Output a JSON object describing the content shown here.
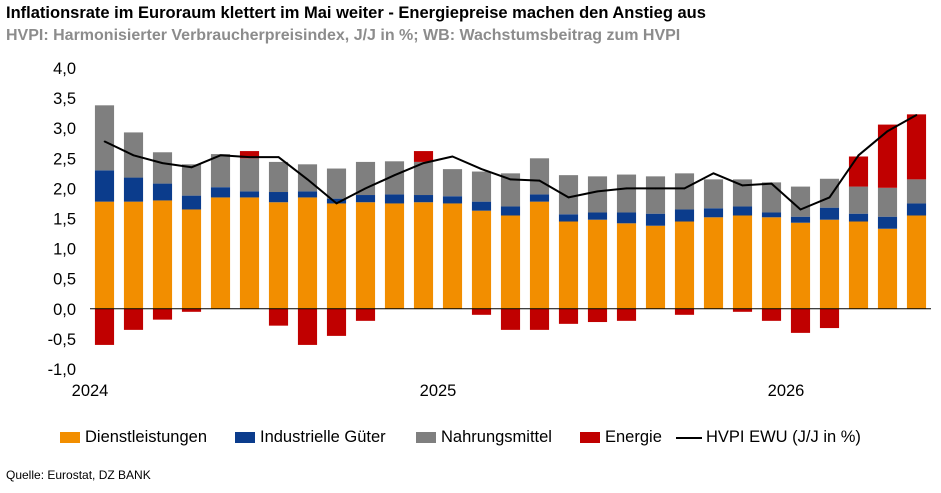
{
  "title": "Inflationsrate im Euroraum klettert im Mai weiter -  Energiepreise machen den Anstieg aus",
  "subtitle": "HVPI: Harmonisierter Verbraucherpreisindex, J/J in %; WB: Wachstumsbeitrag zum HVPI",
  "source": "Quelle: Eurostat, DZ BANK",
  "colors": {
    "dienstleistungen": "#f28e00",
    "industrielle_gueter": "#0b3c8c",
    "nahrungsmittel": "#7f7f7f",
    "energie": "#c00000",
    "hvpi": "#000000"
  },
  "chart_data": {
    "type": "bar",
    "stacked": true,
    "ylim": [
      -1.0,
      4.0
    ],
    "yticks": [
      "4,0",
      "3,5",
      "3,0",
      "2,5",
      "2,0",
      "1,5",
      "1,0",
      "0,5",
      "0,0",
      "-0,5",
      "-1,0"
    ],
    "x_year_labels": [
      {
        "label": "2024",
        "index": 0
      },
      {
        "label": "2025",
        "index": 12
      },
      {
        "label": "2026",
        "index": 24
      }
    ],
    "legend_position": "bottom",
    "series": [
      {
        "name": "Dienstleistungen",
        "key": "dienstleistungen",
        "values": [
          1.78,
          1.78,
          1.8,
          1.65,
          1.85,
          1.85,
          1.77,
          1.85,
          1.75,
          1.77,
          1.75,
          1.77,
          1.75,
          1.63,
          1.55,
          1.78,
          1.45,
          1.48,
          1.42,
          1.38,
          1.45,
          1.52,
          1.55,
          1.52,
          1.43,
          1.48,
          1.45,
          1.33,
          1.55
        ]
      },
      {
        "name": "Industrielle Güter",
        "key": "industrielle_gueter",
        "values": [
          0.52,
          0.4,
          0.28,
          0.23,
          0.17,
          0.1,
          0.17,
          0.1,
          0.08,
          0.12,
          0.15,
          0.12,
          0.12,
          0.15,
          0.15,
          0.12,
          0.12,
          0.12,
          0.18,
          0.2,
          0.2,
          0.15,
          0.15,
          0.08,
          0.1,
          0.2,
          0.13,
          0.2,
          0.2
        ]
      },
      {
        "name": "Nahrungsmittel",
        "key": "nahrungsmittel",
        "values": [
          1.08,
          0.75,
          0.52,
          0.52,
          0.55,
          0.55,
          0.5,
          0.45,
          0.5,
          0.55,
          0.55,
          0.55,
          0.45,
          0.5,
          0.55,
          0.6,
          0.65,
          0.6,
          0.63,
          0.62,
          0.6,
          0.48,
          0.45,
          0.5,
          0.5,
          0.48,
          0.45,
          0.48,
          0.4
        ]
      },
      {
        "name": "Energie",
        "key": "energie",
        "values": [
          -0.6,
          -0.35,
          -0.18,
          -0.05,
          0.0,
          0.12,
          -0.28,
          -0.6,
          -0.45,
          -0.2,
          0.0,
          0.18,
          0.0,
          -0.1,
          -0.35,
          -0.35,
          -0.25,
          -0.22,
          -0.2,
          0.0,
          -0.1,
          0.0,
          -0.05,
          -0.2,
          -0.4,
          -0.32,
          0.5,
          1.05,
          1.08
        ]
      }
    ],
    "line": {
      "name": "HVPI EWU (J/J in %)",
      "key": "hvpi",
      "values": [
        2.78,
        2.55,
        2.42,
        2.35,
        2.55,
        2.52,
        2.52,
        2.15,
        1.75,
        2.0,
        2.22,
        2.42,
        2.53,
        2.32,
        2.15,
        2.13,
        1.85,
        1.95,
        2.0,
        2.0,
        2.0,
        2.25,
        2.05,
        2.08,
        1.65,
        1.85,
        2.55,
        2.95,
        3.22
      ]
    }
  }
}
